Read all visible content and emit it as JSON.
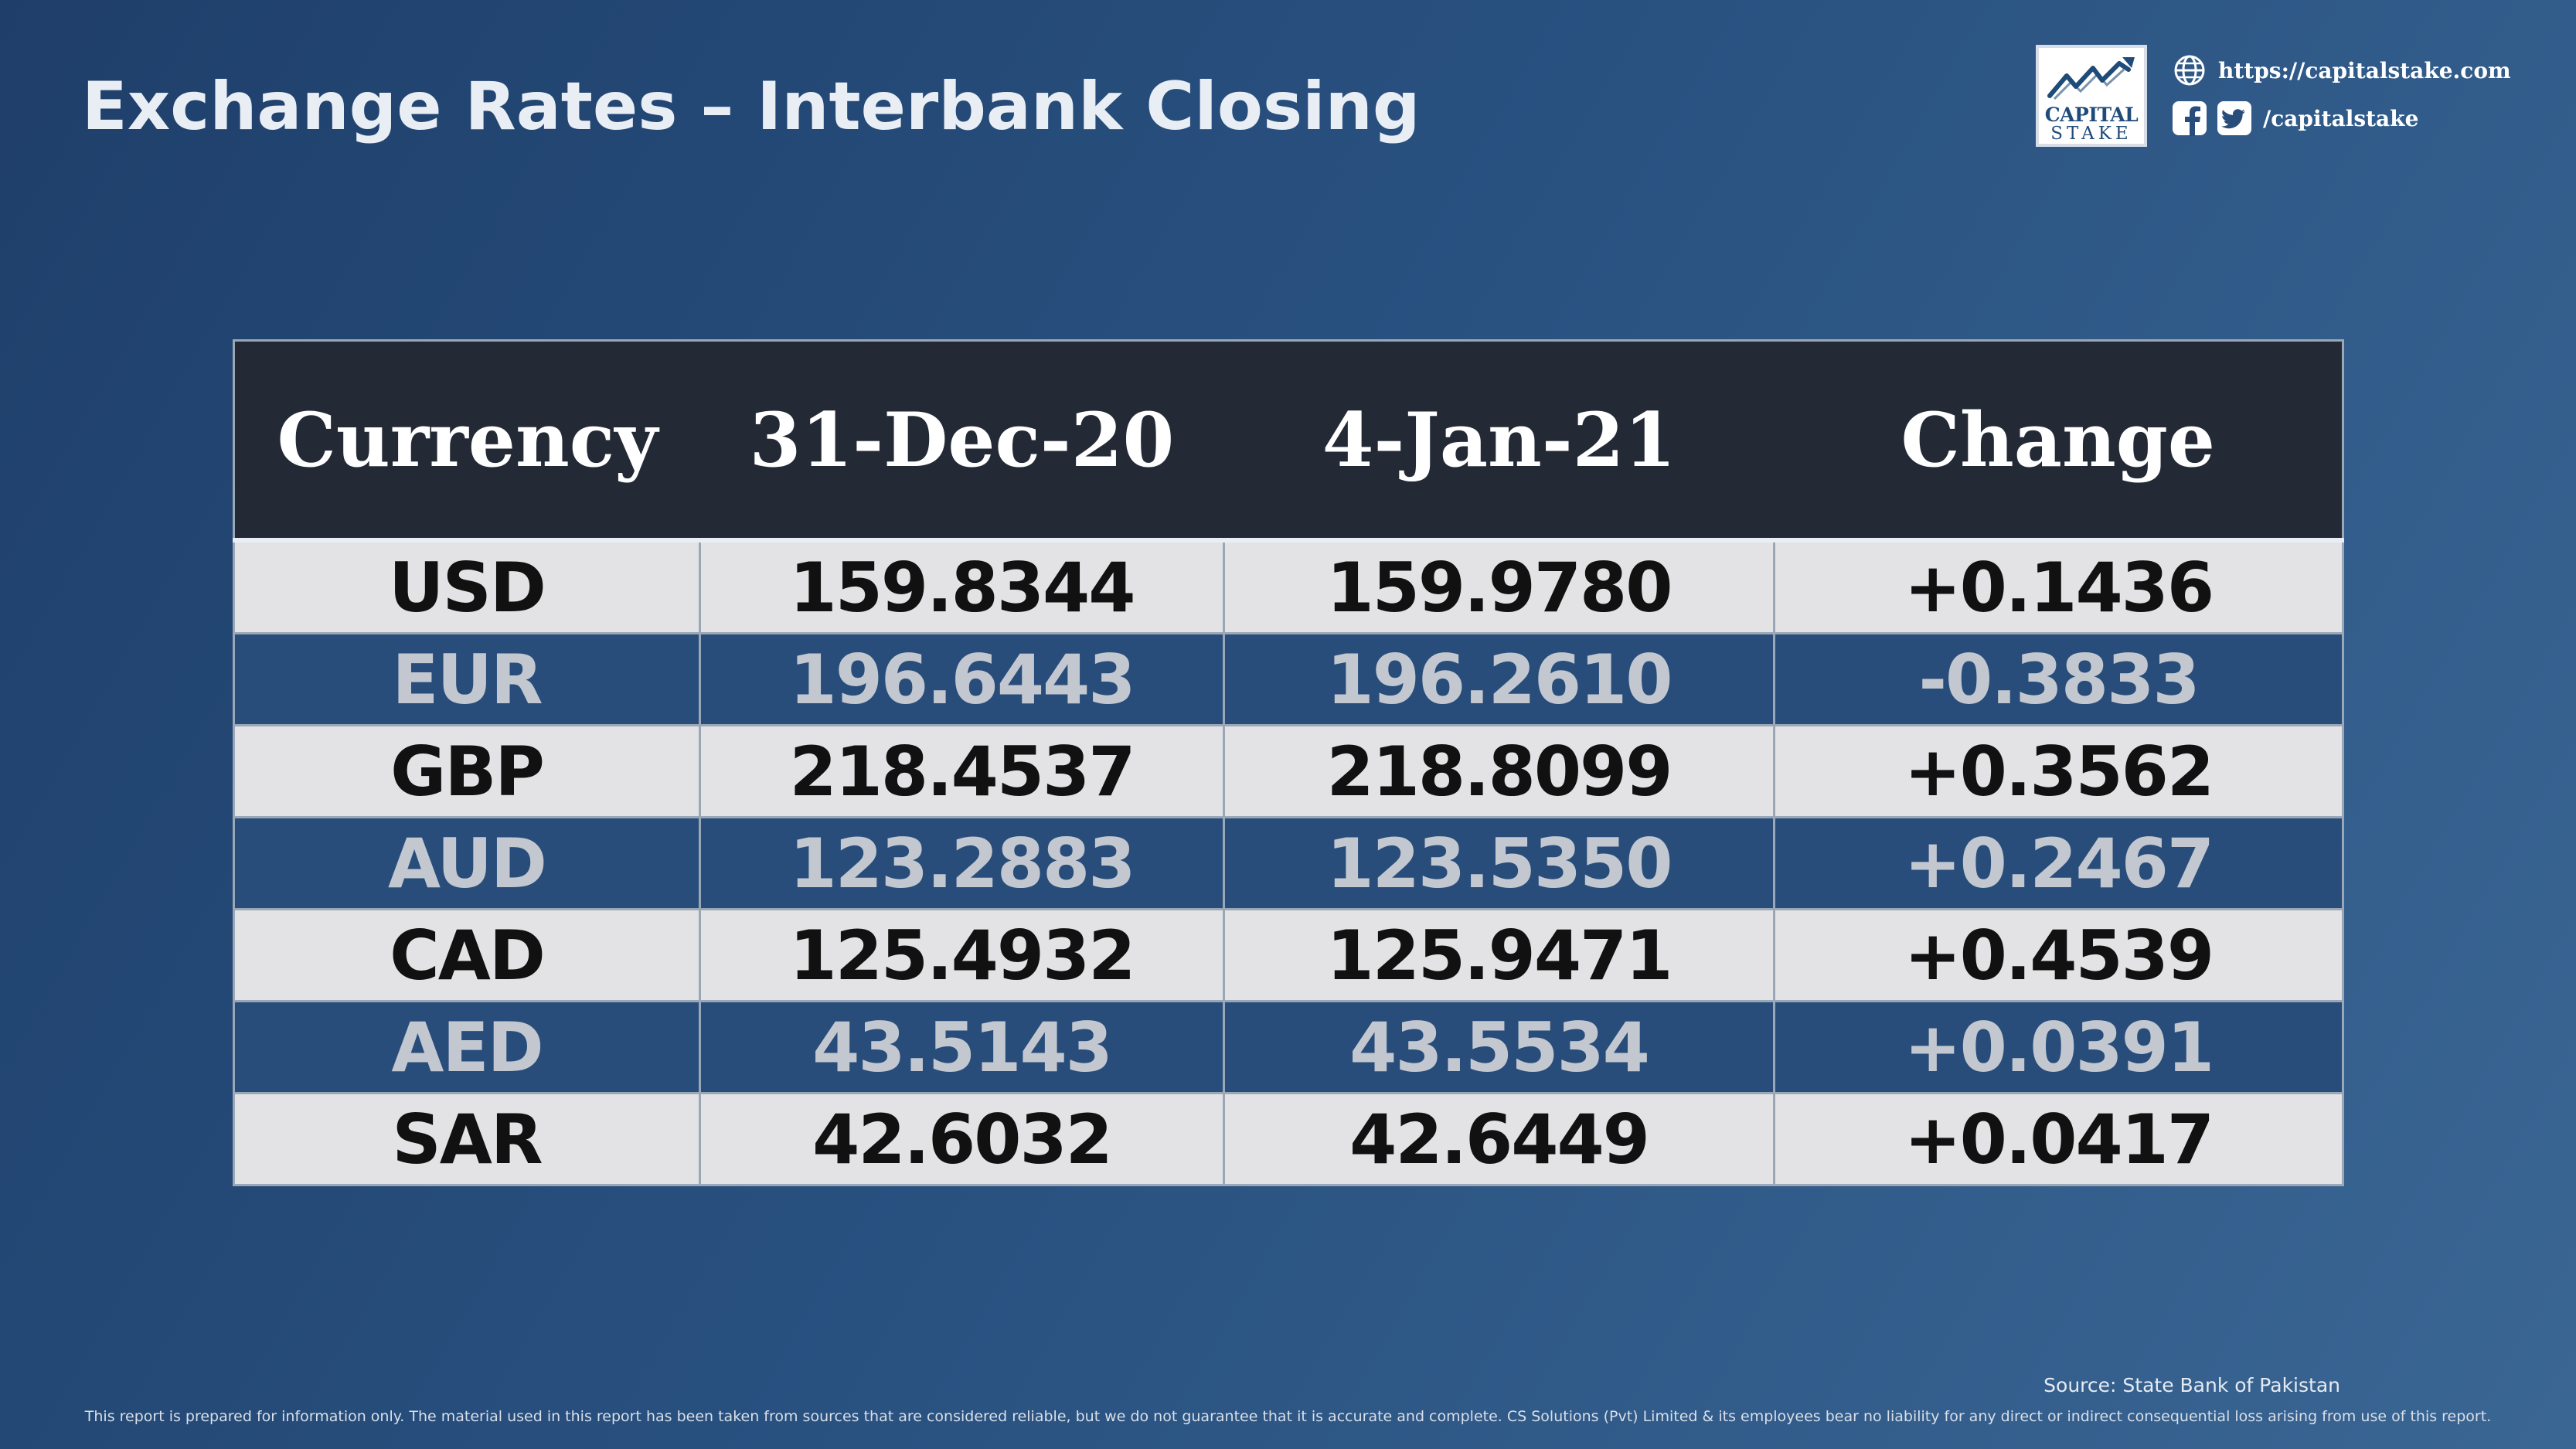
{
  "header": {
    "title": "Exchange Rates – Interbank Closing"
  },
  "brand": {
    "logo_line1": "CAPITAL",
    "logo_line2": "STAKE",
    "website": "https://capitalstake.com",
    "social_handle": "/capitalstake",
    "icons": [
      "globe-icon",
      "facebook-icon",
      "twitter-icon",
      "chart-trend-icon"
    ]
  },
  "table": {
    "headers": [
      "Currency",
      "31-Dec-20",
      "4-Jan-21",
      "Change"
    ],
    "rows": [
      [
        "USD",
        "159.8344",
        "159.9780",
        "+0.1436"
      ],
      [
        "EUR",
        "196.6443",
        "196.2610",
        "-0.3833"
      ],
      [
        "GBP",
        "218.4537",
        "218.8099",
        "+0.3562"
      ],
      [
        "AUD",
        "123.2883",
        "123.5350",
        "+0.2467"
      ],
      [
        "CAD",
        "125.4932",
        "125.9471",
        "+0.4539"
      ],
      [
        "AED",
        "43.5143",
        "43.5534",
        "+0.0391"
      ],
      [
        "SAR",
        "42.6032",
        "42.6449",
        "+0.0417"
      ]
    ]
  },
  "footer": {
    "source": "Source: State Bank of Pakistan",
    "disclaimer": "This report is prepared for information only. The material used in this report has been taken from sources that are considered reliable, but we do not guarantee that it is accurate and complete. CS Solutions (Pvt) Limited & its employees bear no liability for any direct or indirect consequential loss arising from use of this report."
  },
  "colors": {
    "background_start": "#1f3f6a",
    "background_end": "#3a6694",
    "table_header": "#232a36",
    "row_light": "#e3e3e5",
    "row_dark": "#284d7a"
  }
}
